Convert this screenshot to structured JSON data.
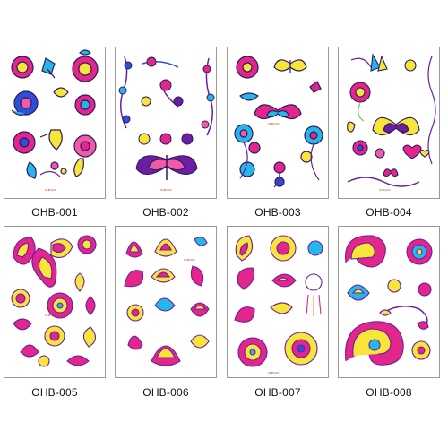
{
  "palette": {
    "yellow": "#f7e53a",
    "magenta": "#e2268c",
    "pink": "#f25aa8",
    "cyan": "#26b7e8",
    "blue": "#2e4fd6",
    "purple": "#6a1fa0",
    "orange": "#f59a1c",
    "green": "#7cc242",
    "outline": "#2a1a5e"
  },
  "products": [
    {
      "code": "OHB-001",
      "theme": "roses"
    },
    {
      "code": "OHB-002",
      "theme": "vines-butterfly"
    },
    {
      "code": "OHB-003",
      "theme": "roses-butterflies"
    },
    {
      "code": "OHB-004",
      "theme": "butterflies-roses"
    },
    {
      "code": "OHB-005",
      "theme": "henna-paisley"
    },
    {
      "code": "OHB-006",
      "theme": "henna-lotus"
    },
    {
      "code": "OHB-007",
      "theme": "henna-mandala"
    },
    {
      "code": "OHB-008",
      "theme": "henna-paisley-mandala"
    }
  ]
}
